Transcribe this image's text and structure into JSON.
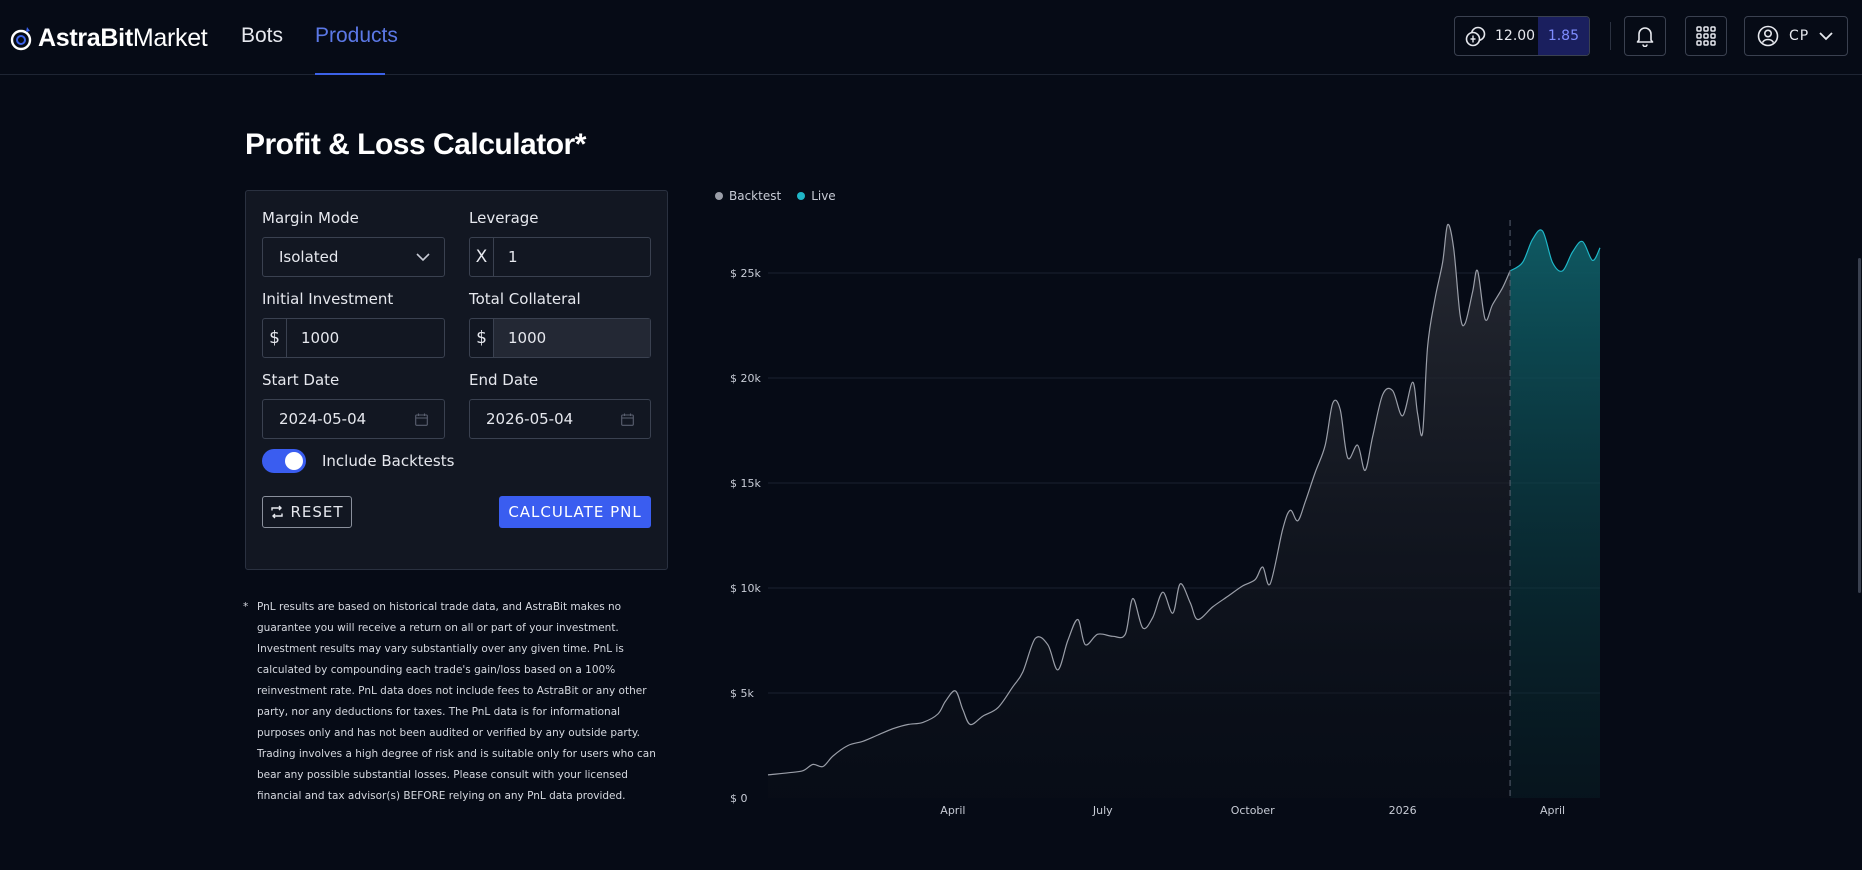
{
  "app": {
    "logo_text_bold": "AstraBit",
    "logo_text_light": "Market"
  },
  "nav": {
    "bots": "Bots",
    "products": "Products"
  },
  "header": {
    "wallet_value": "12.00",
    "wallet_badge": "1.85",
    "user_initials": "CP"
  },
  "page": {
    "title": "Profit & Loss Calculator*"
  },
  "form": {
    "margin_mode_label": "Margin Mode",
    "margin_mode_value": "Isolated",
    "leverage_label": "Leverage",
    "leverage_prefix": "X",
    "leverage_value": "1",
    "initial_investment_label": "Initial Investment",
    "initial_investment_prefix": "$",
    "initial_investment_value": "1000",
    "total_collateral_label": "Total Collateral",
    "total_collateral_prefix": "$",
    "total_collateral_value": "1000",
    "start_date_label": "Start Date",
    "start_date_value": "2024-05-04",
    "end_date_label": "End Date",
    "end_date_value": "2026-05-04",
    "include_backtests_label": "Include Backtests",
    "include_backtests_on": true,
    "reset_label": "RESET",
    "calculate_label": "CALCULATE PNL"
  },
  "disclaimer": {
    "bullet": "*",
    "text": "PnL results are based on historical trade data, and AstraBit makes no guarantee you will receive a return on all or part of your investment. Investment results may vary substantially over any given time. PnL is calculated by compounding each trade's gain/loss based on a 100% reinvestment rate. PnL data does not include fees to AstraBit or any other party, nor any deductions for taxes. The PnL data is for informational purposes only and has not been audited or verified by any outside party. Trading involves a high degree of risk and is suitable only for users who can bear any possible substantial losses. Please consult with your licensed financial and tax advisor(s) BEFORE relying on any PnL data provided."
  },
  "colors": {
    "accent": "#3a5df0",
    "backtest": "#9a9ea8",
    "live": "#1fb6c7"
  },
  "chart_data": {
    "type": "area",
    "legend": [
      {
        "name": "Backtest",
        "color": "#9a9ea8"
      },
      {
        "name": "Live",
        "color": "#1fb6c7"
      }
    ],
    "legend_position": "top-left",
    "y_ticks": [
      0,
      5000,
      10000,
      15000,
      20000,
      25000
    ],
    "y_tick_labels": [
      "$ 0",
      "$ 5k",
      "$ 10k",
      "$ 15k",
      "$ 20k",
      "$ 25k"
    ],
    "ylim": [
      0,
      28000
    ],
    "x_ticks": [
      {
        "label": "April",
        "t": 3.7
      },
      {
        "label": "July",
        "t": 6.7
      },
      {
        "label": "October",
        "t": 9.7
      },
      {
        "label": "2026",
        "t": 12.7
      },
      {
        "label": "April",
        "t": 15.7
      }
    ],
    "xlim": [
      0,
      16.65
    ],
    "live_start_t": 14.85,
    "grid": true,
    "series": [
      {
        "name": "Backtest",
        "points": [
          [
            0,
            1100
          ],
          [
            0.4,
            1200
          ],
          [
            0.7,
            1300
          ],
          [
            0.9,
            1600
          ],
          [
            1.1,
            1500
          ],
          [
            1.3,
            2000
          ],
          [
            1.6,
            2500
          ],
          [
            1.9,
            2700
          ],
          [
            2.2,
            3000
          ],
          [
            2.5,
            3300
          ],
          [
            2.8,
            3500
          ],
          [
            3.1,
            3600
          ],
          [
            3.4,
            4000
          ],
          [
            3.55,
            4600
          ],
          [
            3.75,
            5100
          ],
          [
            3.9,
            4200
          ],
          [
            4.05,
            3500
          ],
          [
            4.3,
            3900
          ],
          [
            4.6,
            4300
          ],
          [
            4.9,
            5300
          ],
          [
            5.1,
            6000
          ],
          [
            5.35,
            7600
          ],
          [
            5.6,
            7300
          ],
          [
            5.8,
            6100
          ],
          [
            6.0,
            7500
          ],
          [
            6.2,
            8500
          ],
          [
            6.35,
            7300
          ],
          [
            6.6,
            7800
          ],
          [
            6.9,
            7700
          ],
          [
            7.15,
            7800
          ],
          [
            7.3,
            9500
          ],
          [
            7.5,
            8100
          ],
          [
            7.7,
            8600
          ],
          [
            7.9,
            9800
          ],
          [
            8.1,
            8800
          ],
          [
            8.25,
            10200
          ],
          [
            8.45,
            9300
          ],
          [
            8.6,
            8500
          ],
          [
            8.9,
            9100
          ],
          [
            9.2,
            9600
          ],
          [
            9.5,
            10100
          ],
          [
            9.75,
            10400
          ],
          [
            9.9,
            11000
          ],
          [
            10.05,
            10200
          ],
          [
            10.3,
            12800
          ],
          [
            10.45,
            13700
          ],
          [
            10.6,
            13200
          ],
          [
            10.75,
            14100
          ],
          [
            10.95,
            15500
          ],
          [
            11.15,
            16800
          ],
          [
            11.3,
            18800
          ],
          [
            11.45,
            18500
          ],
          [
            11.6,
            16200
          ],
          [
            11.8,
            16800
          ],
          [
            11.95,
            15600
          ],
          [
            12.1,
            17200
          ],
          [
            12.3,
            19200
          ],
          [
            12.5,
            19400
          ],
          [
            12.7,
            18200
          ],
          [
            12.9,
            19800
          ],
          [
            13.0,
            18300
          ],
          [
            13.1,
            17400
          ],
          [
            13.2,
            21500
          ],
          [
            13.35,
            23800
          ],
          [
            13.5,
            25500
          ],
          [
            13.6,
            27300
          ],
          [
            13.72,
            26200
          ],
          [
            13.85,
            23000
          ],
          [
            13.95,
            22600
          ],
          [
            14.1,
            24100
          ],
          [
            14.2,
            25100
          ],
          [
            14.35,
            22800
          ],
          [
            14.5,
            23500
          ],
          [
            14.7,
            24300
          ],
          [
            14.85,
            25100
          ]
        ]
      },
      {
        "name": "Live",
        "points": [
          [
            14.85,
            25100
          ],
          [
            15.1,
            25500
          ],
          [
            15.3,
            26600
          ],
          [
            15.5,
            27000
          ],
          [
            15.7,
            25500
          ],
          [
            15.9,
            25100
          ],
          [
            16.1,
            26000
          ],
          [
            16.3,
            26500
          ],
          [
            16.5,
            25600
          ],
          [
            16.65,
            26200
          ]
        ]
      }
    ]
  }
}
